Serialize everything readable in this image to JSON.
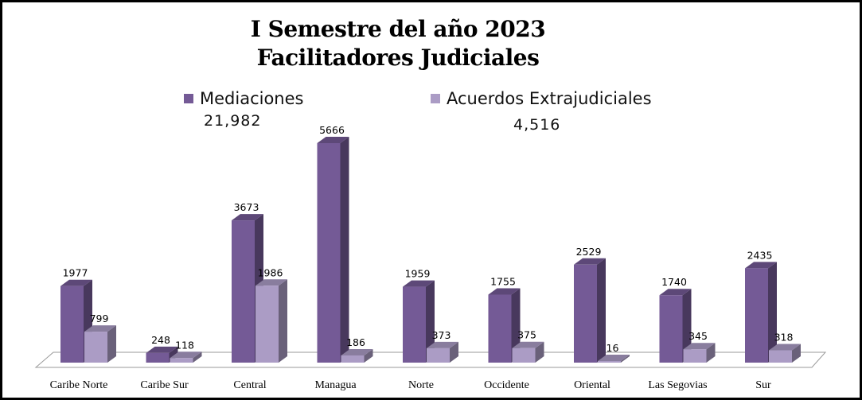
{
  "chart_data": {
    "type": "bar",
    "title": "I Semestre del año 2023",
    "subtitle": "Facilitadores Judiciales",
    "categories": [
      "Caribe Norte",
      "Caribe Sur",
      "Central",
      "Managua",
      "Norte",
      "Occidente",
      "Oriental",
      "Las Segovias",
      "Sur"
    ],
    "series": [
      {
        "name": "Mediaciones",
        "total": "21,982",
        "color": "#745a96",
        "values": [
          1977,
          248,
          3673,
          5666,
          1959,
          1755,
          2529,
          1740,
          2435
        ]
      },
      {
        "name": "Acuerdos Extrajudiciales",
        "total": "4,516",
        "color": "#ab9cc5",
        "values": [
          799,
          118,
          1986,
          186,
          373,
          375,
          16,
          345,
          318
        ]
      }
    ],
    "ylim": [
      0,
      5666
    ],
    "grid": false,
    "legend_position": "top"
  }
}
